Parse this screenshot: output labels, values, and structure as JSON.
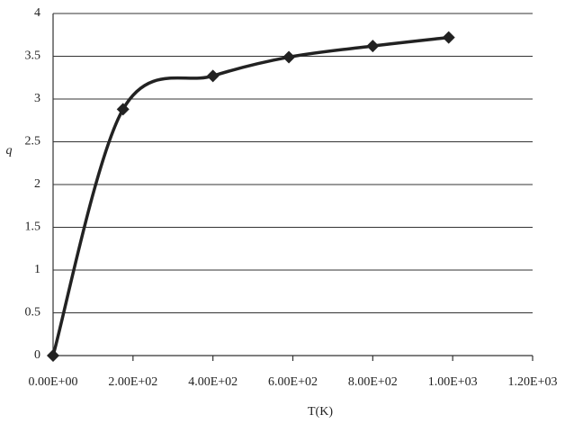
{
  "chart_data": {
    "type": "line",
    "xlabel": "T(K)",
    "ylabel": "q",
    "x": [
      0,
      175,
      400,
      590,
      800,
      990
    ],
    "values": [
      0,
      2.88,
      3.27,
      3.49,
      3.62,
      3.72
    ],
    "color": "#222222",
    "marker": "diamond",
    "smooth": true,
    "xlim": [
      0,
      1200
    ],
    "xticks": [
      {
        "value": 0,
        "label": "0.00E+00"
      },
      {
        "value": 200,
        "label": "2.00E+02"
      },
      {
        "value": 400,
        "label": "4.00E+02"
      },
      {
        "value": 600,
        "label": "6.00E+02"
      },
      {
        "value": 800,
        "label": "8.00E+02"
      },
      {
        "value": 1000,
        "label": "1.00E+03"
      },
      {
        "value": 1200,
        "label": "1.20E+03"
      }
    ],
    "ylim": [
      0,
      4
    ],
    "yticks": [
      0,
      0.5,
      1,
      1.5,
      2,
      2.5,
      3,
      3.5,
      4
    ],
    "grid": true
  }
}
